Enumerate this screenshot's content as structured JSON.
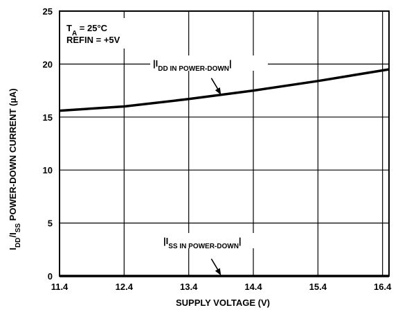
{
  "chart_data": {
    "type": "line",
    "title": "",
    "xlabel": "SUPPLY VOLTAGE (V)",
    "ylabel": {
      "parts": [
        {
          "t": "I",
          "sub": false
        },
        {
          "t": "DD",
          "sub": true
        },
        {
          "t": "/I",
          "sub": false
        },
        {
          "t": "SS",
          "sub": true
        },
        {
          "t": " POWER-DOWN CURRENT (µA)",
          "sub": false
        }
      ]
    },
    "xlim": [
      11.4,
      16.5
    ],
    "ylim": [
      0,
      25
    ],
    "x_ticks": [
      11.4,
      12.4,
      13.4,
      14.4,
      15.4,
      16.4
    ],
    "x_tick_labels": [
      "11.4",
      "12.4",
      "13.4",
      "14.4",
      "15.4",
      "16.4"
    ],
    "y_ticks": [
      0,
      5,
      10,
      15,
      20,
      25
    ],
    "y_tick_labels": [
      "0",
      "5",
      "10",
      "15",
      "20",
      "25"
    ],
    "grid": true,
    "conditions": {
      "line1": {
        "parts": [
          {
            "t": "T",
            "sub": false
          },
          {
            "t": "A",
            "sub": true
          },
          {
            "t": " = 25°C",
            "sub": false
          }
        ]
      },
      "line2": "REFIN = +5V"
    },
    "series": [
      {
        "name": "|IDD IN POWER-DOWN|",
        "label_parts": [
          {
            "t": "|I",
            "sub": false
          },
          {
            "t": "DD IN POWER-DOWN",
            "sub": true
          },
          {
            "t": "|",
            "sub": false
          }
        ],
        "x": [
          11.4,
          12.4,
          13.4,
          14.4,
          15.4,
          16.5
        ],
        "y": [
          15.6,
          16.0,
          16.7,
          17.5,
          18.4,
          19.5
        ],
        "annotation_target": [
          13.9,
          17.1
        ]
      },
      {
        "name": "|ISS IN POWER-DOWN|",
        "label_parts": [
          {
            "t": "|I",
            "sub": false
          },
          {
            "t": "SS IN POWER-DOWN",
            "sub": true
          },
          {
            "t": "|",
            "sub": false
          }
        ],
        "x": [
          11.4,
          16.5
        ],
        "y": [
          0.0,
          0.0
        ],
        "annotation_target": [
          13.9,
          0.05
        ]
      }
    ]
  }
}
